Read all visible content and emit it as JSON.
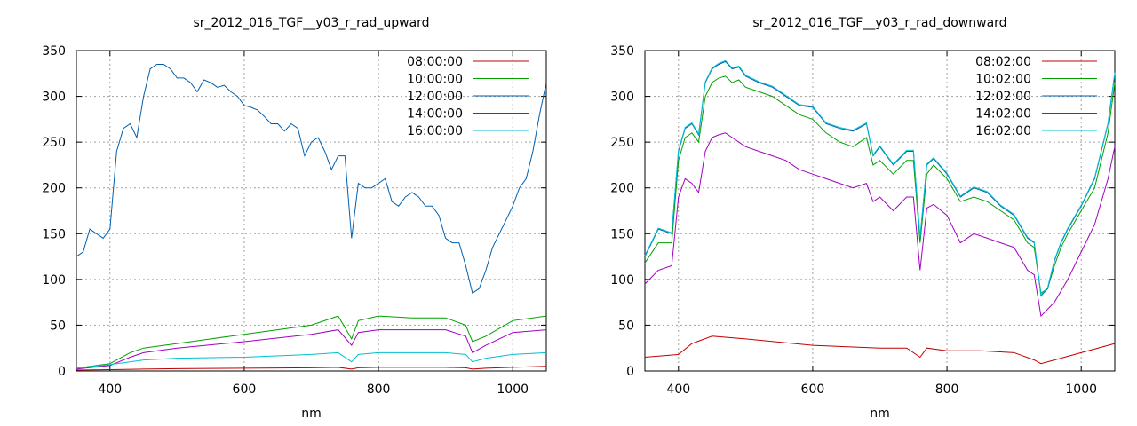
{
  "chart_data": [
    {
      "type": "line",
      "title": "sr_2012_016_TGF__y03_r_rad_upward",
      "xlabel": "nm",
      "ylabel": "",
      "xlim": [
        350,
        1050
      ],
      "ylim": [
        0,
        350
      ],
      "xticks": [
        400,
        600,
        800,
        1000
      ],
      "yticks": [
        0,
        50,
        100,
        150,
        200,
        250,
        300,
        350
      ],
      "grid": true,
      "legend_position": "top-right",
      "series": [
        {
          "name": "08:00:00",
          "color": "#c00000",
          "x": [
            350,
            400,
            450,
            500,
            600,
            700,
            740,
            760,
            770,
            800,
            850,
            900,
            930,
            940,
            960,
            1000,
            1050
          ],
          "y": [
            1,
            1.5,
            2,
            2.5,
            3,
            3.5,
            4,
            2,
            3.5,
            4,
            4,
            4,
            3.5,
            2,
            3,
            4,
            5
          ]
        },
        {
          "name": "10:00:00",
          "color": "#00a000",
          "x": [
            350,
            400,
            430,
            450,
            500,
            600,
            700,
            740,
            760,
            770,
            800,
            850,
            900,
            930,
            940,
            960,
            1000,
            1050
          ],
          "y": [
            3,
            8,
            20,
            25,
            30,
            40,
            50,
            60,
            35,
            55,
            60,
            58,
            58,
            50,
            32,
            38,
            55,
            60
          ]
        },
        {
          "name": "12:00:00",
          "color": "#0060b0",
          "x": [
            350,
            360,
            370,
            380,
            390,
            400,
            410,
            420,
            430,
            440,
            450,
            460,
            470,
            480,
            490,
            500,
            510,
            520,
            530,
            540,
            550,
            560,
            570,
            580,
            590,
            600,
            610,
            620,
            630,
            640,
            650,
            660,
            670,
            680,
            690,
            700,
            710,
            720,
            730,
            740,
            750,
            760,
            770,
            780,
            790,
            800,
            810,
            820,
            830,
            840,
            850,
            860,
            870,
            880,
            890,
            900,
            910,
            920,
            930,
            940,
            950,
            960,
            970,
            980,
            990,
            1000,
            1010,
            1020,
            1030,
            1040,
            1050
          ],
          "y": [
            125,
            130,
            155,
            150,
            145,
            155,
            240,
            265,
            270,
            255,
            300,
            330,
            335,
            335,
            330,
            320,
            320,
            315,
            305,
            318,
            315,
            310,
            312,
            305,
            300,
            290,
            288,
            285,
            278,
            270,
            270,
            262,
            270,
            265,
            235,
            250,
            255,
            240,
            220,
            235,
            235,
            145,
            205,
            200,
            200,
            205,
            210,
            185,
            180,
            190,
            195,
            190,
            180,
            180,
            170,
            145,
            140,
            140,
            115,
            85,
            90,
            110,
            135,
            150,
            165,
            180,
            200,
            210,
            240,
            280,
            315
          ]
        },
        {
          "name": "14:00:00",
          "color": "#a000c0",
          "x": [
            350,
            400,
            430,
            450,
            500,
            600,
            700,
            740,
            760,
            770,
            800,
            850,
            900,
            930,
            940,
            960,
            1000,
            1050
          ],
          "y": [
            2,
            6,
            15,
            20,
            25,
            32,
            40,
            45,
            28,
            42,
            45,
            45,
            45,
            38,
            20,
            28,
            42,
            45
          ]
        },
        {
          "name": "16:00:00",
          "color": "#00c0d0",
          "x": [
            350,
            400,
            450,
            500,
            600,
            700,
            740,
            760,
            770,
            800,
            850,
            900,
            930,
            940,
            960,
            1000,
            1050
          ],
          "y": [
            3,
            7,
            12,
            14,
            15,
            18,
            20,
            10,
            18,
            20,
            20,
            20,
            18,
            10,
            14,
            18,
            20
          ]
        }
      ]
    },
    {
      "type": "line",
      "title": "sr_2012_016_TGF__y03_r_rad_downward",
      "xlabel": "nm",
      "ylabel": "",
      "xlim": [
        350,
        1050
      ],
      "ylim": [
        0,
        350
      ],
      "xticks": [
        400,
        600,
        800,
        1000
      ],
      "yticks": [
        0,
        50,
        100,
        150,
        200,
        250,
        300,
        350
      ],
      "grid": true,
      "legend_position": "top-right",
      "series": [
        {
          "name": "08:02:00",
          "color": "#c00000",
          "x": [
            350,
            400,
            420,
            450,
            500,
            600,
            700,
            740,
            760,
            770,
            800,
            850,
            900,
            930,
            940,
            960,
            1000,
            1050
          ],
          "y": [
            15,
            18,
            30,
            38,
            35,
            28,
            25,
            25,
            15,
            25,
            22,
            22,
            20,
            12,
            8,
            12,
            20,
            30
          ]
        },
        {
          "name": "10:02:00",
          "color": "#00a000",
          "x": [
            350,
            370,
            390,
            400,
            410,
            420,
            430,
            440,
            450,
            460,
            470,
            480,
            490,
            500,
            520,
            540,
            560,
            580,
            600,
            620,
            640,
            660,
            680,
            690,
            700,
            720,
            740,
            750,
            760,
            770,
            780,
            800,
            820,
            840,
            860,
            880,
            900,
            920,
            930,
            940,
            950,
            960,
            970,
            980,
            1000,
            1020,
            1040,
            1050
          ],
          "y": [
            118,
            140,
            140,
            230,
            255,
            260,
            250,
            300,
            315,
            320,
            322,
            315,
            318,
            310,
            305,
            300,
            290,
            280,
            275,
            260,
            250,
            245,
            255,
            225,
            230,
            215,
            230,
            230,
            140,
            215,
            225,
            210,
            185,
            190,
            185,
            175,
            165,
            140,
            135,
            85,
            90,
            115,
            135,
            150,
            175,
            200,
            260,
            315
          ]
        },
        {
          "name": "12:02:00",
          "color": "#0060b0",
          "x": [
            350,
            370,
            390,
            400,
            410,
            420,
            430,
            440,
            450,
            460,
            470,
            480,
            490,
            500,
            520,
            540,
            560,
            580,
            600,
            620,
            640,
            660,
            680,
            690,
            700,
            720,
            740,
            750,
            760,
            770,
            780,
            800,
            820,
            840,
            860,
            880,
            900,
            920,
            930,
            940,
            950,
            960,
            970,
            980,
            1000,
            1020,
            1040,
            1050
          ],
          "y": [
            125,
            155,
            150,
            240,
            265,
            270,
            258,
            315,
            330,
            335,
            338,
            330,
            332,
            322,
            315,
            310,
            300,
            290,
            288,
            270,
            265,
            262,
            270,
            235,
            245,
            225,
            240,
            240,
            145,
            225,
            232,
            215,
            190,
            200,
            195,
            180,
            170,
            145,
            140,
            82,
            90,
            120,
            140,
            155,
            180,
            210,
            270,
            325
          ]
        },
        {
          "name": "14:02:00",
          "color": "#a000c0",
          "x": [
            350,
            370,
            390,
            400,
            410,
            420,
            430,
            440,
            450,
            460,
            470,
            480,
            500,
            520,
            540,
            560,
            580,
            600,
            620,
            640,
            660,
            680,
            690,
            700,
            720,
            740,
            750,
            760,
            770,
            780,
            800,
            820,
            840,
            860,
            880,
            900,
            920,
            930,
            940,
            960,
            980,
            1000,
            1020,
            1040,
            1050
          ],
          "y": [
            95,
            110,
            115,
            190,
            210,
            205,
            195,
            240,
            255,
            258,
            260,
            255,
            245,
            240,
            235,
            230,
            220,
            215,
            210,
            205,
            200,
            205,
            185,
            190,
            175,
            190,
            190,
            110,
            178,
            182,
            170,
            140,
            150,
            145,
            140,
            135,
            110,
            105,
            60,
            75,
            100,
            130,
            160,
            210,
            245
          ]
        },
        {
          "name": "16:02:00",
          "color": "#00c0d0",
          "x": [
            350,
            370,
            390,
            400,
            410,
            420,
            430,
            440,
            450,
            460,
            470,
            480,
            490,
            500,
            520,
            540,
            560,
            580,
            600,
            620,
            640,
            660,
            680,
            690,
            700,
            720,
            740,
            750,
            760,
            770,
            780,
            800,
            820,
            840,
            860,
            880,
            900,
            920,
            930,
            940,
            950,
            960,
            970,
            980,
            1000,
            1020,
            1040,
            1050
          ],
          "y": [
            126,
            156,
            151,
            241,
            266,
            271,
            259,
            316,
            331,
            336,
            339,
            331,
            333,
            323,
            316,
            311,
            301,
            291,
            289,
            271,
            266,
            263,
            271,
            236,
            246,
            226,
            241,
            241,
            146,
            226,
            233,
            216,
            191,
            201,
            196,
            181,
            171,
            146,
            141,
            83,
            91,
            121,
            141,
            156,
            181,
            211,
            271,
            326
          ]
        }
      ]
    }
  ]
}
